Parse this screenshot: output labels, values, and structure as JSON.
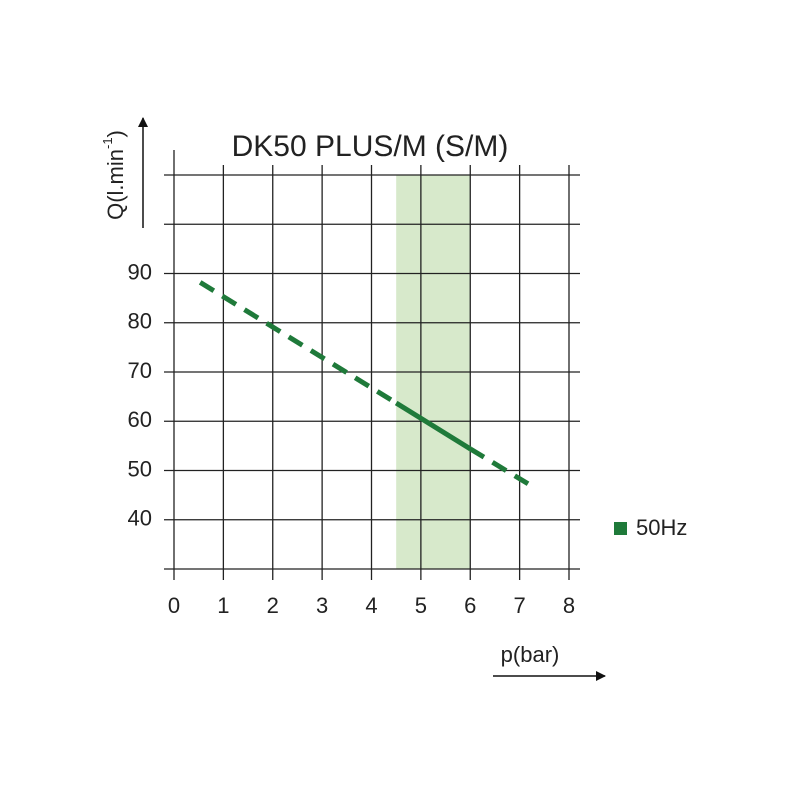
{
  "chart_data": {
    "type": "line",
    "title": "DK50 PLUS/M (S/M)",
    "x_label": "p(bar)",
    "y_label": {
      "text": "Q(l.min",
      "superscript": "-1",
      "end": ")"
    },
    "xlim": [
      0,
      8
    ],
    "xticks": [
      0,
      1,
      2,
      3,
      4,
      5,
      6,
      7,
      8
    ],
    "ylim": [
      30,
      110
    ],
    "yticks": [
      40,
      50,
      60,
      70,
      80,
      90
    ],
    "ygrid": [
      30,
      40,
      50,
      60,
      70,
      80,
      90,
      100,
      110
    ],
    "grid": true,
    "highlight_range": [
      4.5,
      6
    ],
    "highlight_color": "#d7e9cb",
    "solid_range": [
      4.5,
      6
    ],
    "legend": "right",
    "series": [
      {
        "name": "50Hz",
        "color": "#1f7a3a",
        "x": [
          0.53,
          4.5,
          6,
          7.17
        ],
        "values": [
          88.2,
          63.7,
          54.4,
          47.3
        ]
      }
    ]
  }
}
